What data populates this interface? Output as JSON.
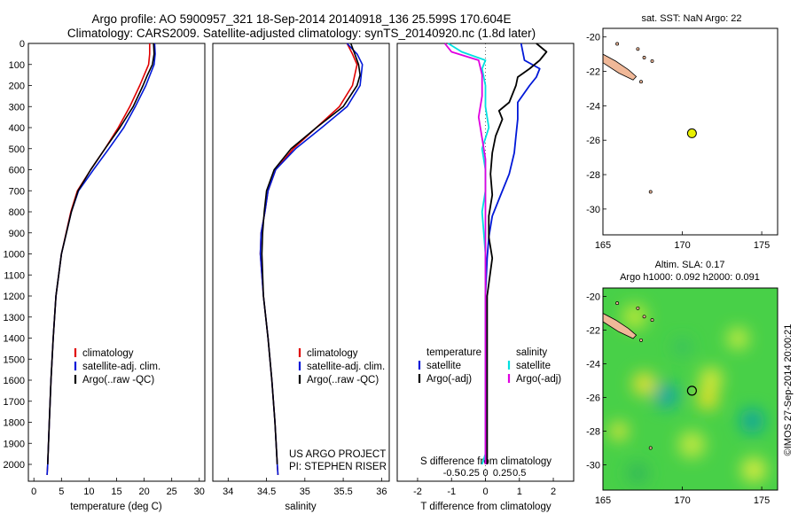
{
  "header": {
    "title_line1": "Argo profile: AO 5900957_321 18-Sep-2014 20140918_136 25.599S 170.604E",
    "title_line2": "Climatology: CARS2009. Satellite-adjusted climatology: synTS_20140920.nc (1.8d later)"
  },
  "colors": {
    "climatology": "#e00000",
    "satellite": "#0018d8",
    "argo": "#000000",
    "sat_diff": "#00e0e0",
    "argo_diff": "#e000e0",
    "land": "#f0b898",
    "float": "#e8f000"
  },
  "panels": {
    "temp_xlabel": "temperature (deg C)",
    "sal_xlabel": "salinity",
    "diff_xlabel_top": "S difference from climatology",
    "diff_xlabel_bottom": "T difference from climatology",
    "legend_climatology": "climatology",
    "legend_satellite_adj": "satellite-adj. clim.",
    "legend_argo": "Argo(..raw -QC)",
    "project": "US ARGO PROJECT",
    "pi": "PI: STEPHEN RISER",
    "diff_legend_temp": "temperature",
    "diff_legend_sal": "salinity",
    "diff_legend_satellite": "satellite",
    "diff_legend_argo": "Argo(-adj)",
    "sst_title": "sat. SST: NaN Argo: 22",
    "sla_title1": "Altim. SLA: 0.17",
    "sla_title2": "Argo h1000: 0.092 h2000: 0.091",
    "stamp": "©IMOS 27-Sep-2014 20:00:21"
  },
  "axes": {
    "depth_ticks": [
      0,
      100,
      200,
      300,
      400,
      500,
      600,
      700,
      800,
      900,
      1000,
      1100,
      1200,
      1300,
      1400,
      1500,
      1600,
      1700,
      1800,
      1900,
      2000
    ],
    "temp_ticks": [
      0,
      5,
      10,
      15,
      20,
      25,
      30
    ],
    "sal_ticks": [
      34,
      34.5,
      35,
      35.5,
      36
    ],
    "diff_T_ticks": [
      "-2",
      "-1",
      "0",
      "1",
      "2"
    ],
    "diff_S_ticks": [
      "-0.5",
      "-0.25",
      "0",
      "0.25",
      "0.5"
    ],
    "map_lat_ticks": [
      -20,
      -22,
      -24,
      -26,
      -28,
      -30
    ],
    "map_lon_ticks": [
      165,
      170,
      175
    ]
  },
  "chart_data": [
    {
      "type": "line",
      "xlabel": "temperature (deg C)",
      "ylabel": "",
      "xlim": [
        -1,
        31
      ],
      "ylim": [
        2080,
        0
      ],
      "series": [
        {
          "name": "climatology",
          "depth": [
            0,
            50,
            100,
            200,
            300,
            400,
            500,
            600,
            700,
            800,
            1000,
            1200,
            1400,
            1600,
            1800,
            2000,
            2050
          ],
          "values": [
            21.0,
            21.0,
            20.8,
            19.2,
            17.4,
            15.3,
            12.9,
            10.3,
            7.9,
            6.7,
            5.0,
            4.0,
            3.5,
            3.1,
            2.8,
            2.5,
            2.4
          ]
        },
        {
          "name": "satellite-adj. clim.",
          "depth": [
            0,
            50,
            100,
            200,
            300,
            400,
            500,
            600,
            700,
            800,
            1000,
            1200,
            1400,
            1600,
            1800,
            2000,
            2050
          ],
          "values": [
            21.9,
            22.0,
            21.8,
            20.3,
            18.4,
            16.3,
            13.6,
            10.8,
            8.1,
            6.8,
            5.0,
            4.0,
            3.5,
            3.1,
            2.8,
            2.5,
            2.4
          ]
        },
        {
          "name": "Argo(..raw -QC)",
          "depth": [
            0,
            50,
            100,
            150,
            200,
            300,
            400,
            500,
            600,
            700,
            800,
            1000,
            1200,
            1400,
            1600,
            1800,
            2000
          ],
          "values": [
            21.7,
            21.8,
            21.5,
            20.6,
            19.8,
            18.0,
            15.6,
            12.9,
            10.3,
            8.0,
            6.8,
            5.0,
            4.0,
            3.5,
            3.1,
            2.8,
            2.5
          ]
        }
      ]
    },
    {
      "type": "line",
      "xlabel": "salinity",
      "ylabel": "",
      "xlim": [
        33.8,
        36.1
      ],
      "ylim": [
        2080,
        0
      ],
      "series": [
        {
          "name": "climatology",
          "depth": [
            0,
            50,
            100,
            200,
            300,
            400,
            500,
            600,
            700,
            800,
            900,
            1000,
            1200,
            1400,
            1600,
            1800,
            2000,
            2050
          ],
          "values": [
            35.55,
            35.62,
            35.68,
            35.62,
            35.45,
            35.15,
            34.85,
            34.62,
            34.52,
            34.48,
            34.43,
            34.42,
            34.46,
            34.52,
            34.57,
            34.61,
            34.64,
            34.65
          ]
        },
        {
          "name": "satellite-adj. clim.",
          "depth": [
            0,
            50,
            100,
            200,
            300,
            400,
            500,
            600,
            700,
            800,
            900,
            1000,
            1200,
            1400,
            1600,
            1800,
            2000,
            2050
          ],
          "values": [
            35.55,
            35.68,
            35.75,
            35.72,
            35.55,
            35.22,
            34.88,
            34.62,
            34.52,
            34.48,
            34.43,
            34.42,
            34.46,
            34.52,
            34.57,
            34.61,
            34.64,
            34.65
          ]
        },
        {
          "name": "Argo(..raw -QC)",
          "depth": [
            0,
            50,
            100,
            150,
            200,
            300,
            400,
            500,
            600,
            700,
            800,
            900,
            1000,
            1200,
            1400,
            1600,
            1800,
            2000
          ],
          "values": [
            35.6,
            35.65,
            35.7,
            35.72,
            35.68,
            35.5,
            35.15,
            34.82,
            34.6,
            34.5,
            34.47,
            34.45,
            34.44,
            34.46,
            34.52,
            34.57,
            34.61,
            34.64
          ]
        }
      ]
    },
    {
      "type": "line",
      "xlabel": "T difference from climatology",
      "ylabel": "",
      "xlim": [
        -2.6,
        2.6
      ],
      "ylim": [
        2080,
        0
      ],
      "series": [
        {
          "name": "temperature satellite",
          "depth": [
            0,
            40,
            80,
            120,
            160,
            200,
            280,
            360,
            440,
            520,
            620,
            720,
            820,
            920,
            1020,
            1200,
            1400,
            1600,
            1800,
            2000
          ],
          "values": [
            1.05,
            1.1,
            1.15,
            1.6,
            1.5,
            1.3,
            0.95,
            0.95,
            0.9,
            0.85,
            0.7,
            0.45,
            0.2,
            0.1,
            0.05,
            0.0,
            0.0,
            0.0,
            0.0,
            0.0
          ]
        },
        {
          "name": "temperature Argo(-adj)",
          "depth": [
            0,
            40,
            80,
            120,
            160,
            200,
            280,
            320,
            360,
            440,
            520,
            620,
            720,
            820,
            920,
            1020,
            1200,
            1400,
            1600,
            1800,
            2000
          ],
          "values": [
            1.5,
            1.8,
            1.6,
            1.3,
            0.95,
            0.9,
            0.7,
            0.4,
            0.5,
            0.3,
            0.2,
            0.15,
            0.2,
            0.1,
            0.1,
            0.2,
            0.05,
            0.05,
            0.05,
            0.05,
            0.05
          ]
        },
        {
          "name": "salinity satellite",
          "depth": [
            0,
            40,
            80,
            120,
            200,
            300,
            400,
            500,
            600,
            700,
            800,
            1000,
            1200,
            1400,
            1600,
            1800,
            1950,
            2000
          ],
          "values": [
            -0.55,
            -0.35,
            0.0,
            -0.05,
            0.0,
            0.0,
            0.05,
            -0.05,
            0.0,
            0.0,
            -0.05,
            0.0,
            0.0,
            0.0,
            0.0,
            0.0,
            0.0,
            -0.05
          ]
        },
        {
          "name": "salinity Argo(-adj)",
          "depth": [
            0,
            40,
            80,
            150,
            250,
            350,
            450,
            550,
            650,
            750,
            850,
            1000,
            1200,
            1400,
            1600,
            1800,
            2000
          ],
          "values": [
            -0.6,
            -0.5,
            -0.1,
            -0.05,
            -0.05,
            -0.1,
            -0.05,
            0.0,
            0.0,
            0.0,
            0.0,
            0.0,
            0.0,
            0.0,
            0.0,
            0.0,
            0.0
          ]
        }
      ]
    },
    {
      "type": "scatter",
      "xlabel": "",
      "ylabel": "",
      "xlim": [
        165,
        176
      ],
      "ylim": [
        -31.5,
        -19.5
      ],
      "series": [
        {
          "name": "Argo float",
          "x": [
            170.604
          ],
          "y": [
            -25.599
          ]
        }
      ]
    }
  ]
}
